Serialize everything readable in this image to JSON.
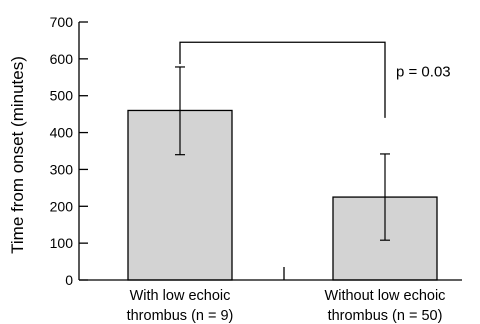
{
  "chart_data": {
    "type": "bar",
    "title": "",
    "ylabel": "Time from onset (minutes)",
    "ylim": [
      0,
      700
    ],
    "yticks": [
      0,
      100,
      200,
      300,
      400,
      500,
      600,
      700
    ],
    "categories": [
      [
        "With low echoic",
        "thrombus (n = 9)"
      ],
      [
        "Without low echoic",
        "thrombus (n = 50)"
      ]
    ],
    "values": [
      460,
      225
    ],
    "error_low": [
      340,
      108
    ],
    "error_high": [
      578,
      342
    ],
    "bar_color": "#d3d3d3",
    "annotation": {
      "text": "p = 0.03",
      "bracket_top": 645,
      "bracket_left_end": 578,
      "bracket_right_end": 440
    },
    "grid": false,
    "legend": "none"
  }
}
